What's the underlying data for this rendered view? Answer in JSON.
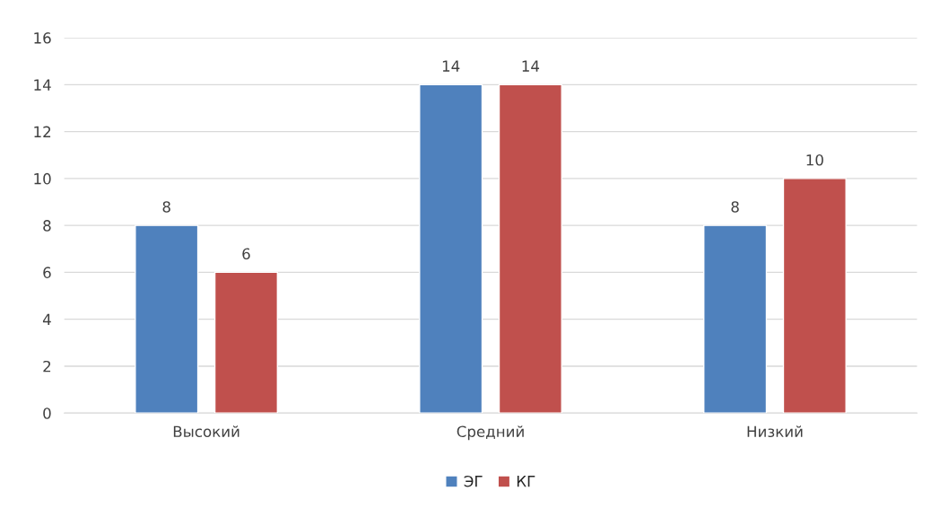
{
  "chart_data": {
    "type": "bar",
    "categories": [
      "Высокий",
      "Средний",
      "Низкий"
    ],
    "series": [
      {
        "name": "ЭГ",
        "color": "#4f81bd",
        "values": [
          8,
          14,
          8
        ]
      },
      {
        "name": "КГ",
        "color": "#c0504d",
        "values": [
          6,
          14,
          10
        ]
      }
    ],
    "ylim": [
      0,
      16
    ],
    "yticks": [
      0,
      2,
      4,
      6,
      8,
      10,
      12,
      14,
      16
    ],
    "grid": "y",
    "legend": "bottom",
    "data_labels": true
  }
}
